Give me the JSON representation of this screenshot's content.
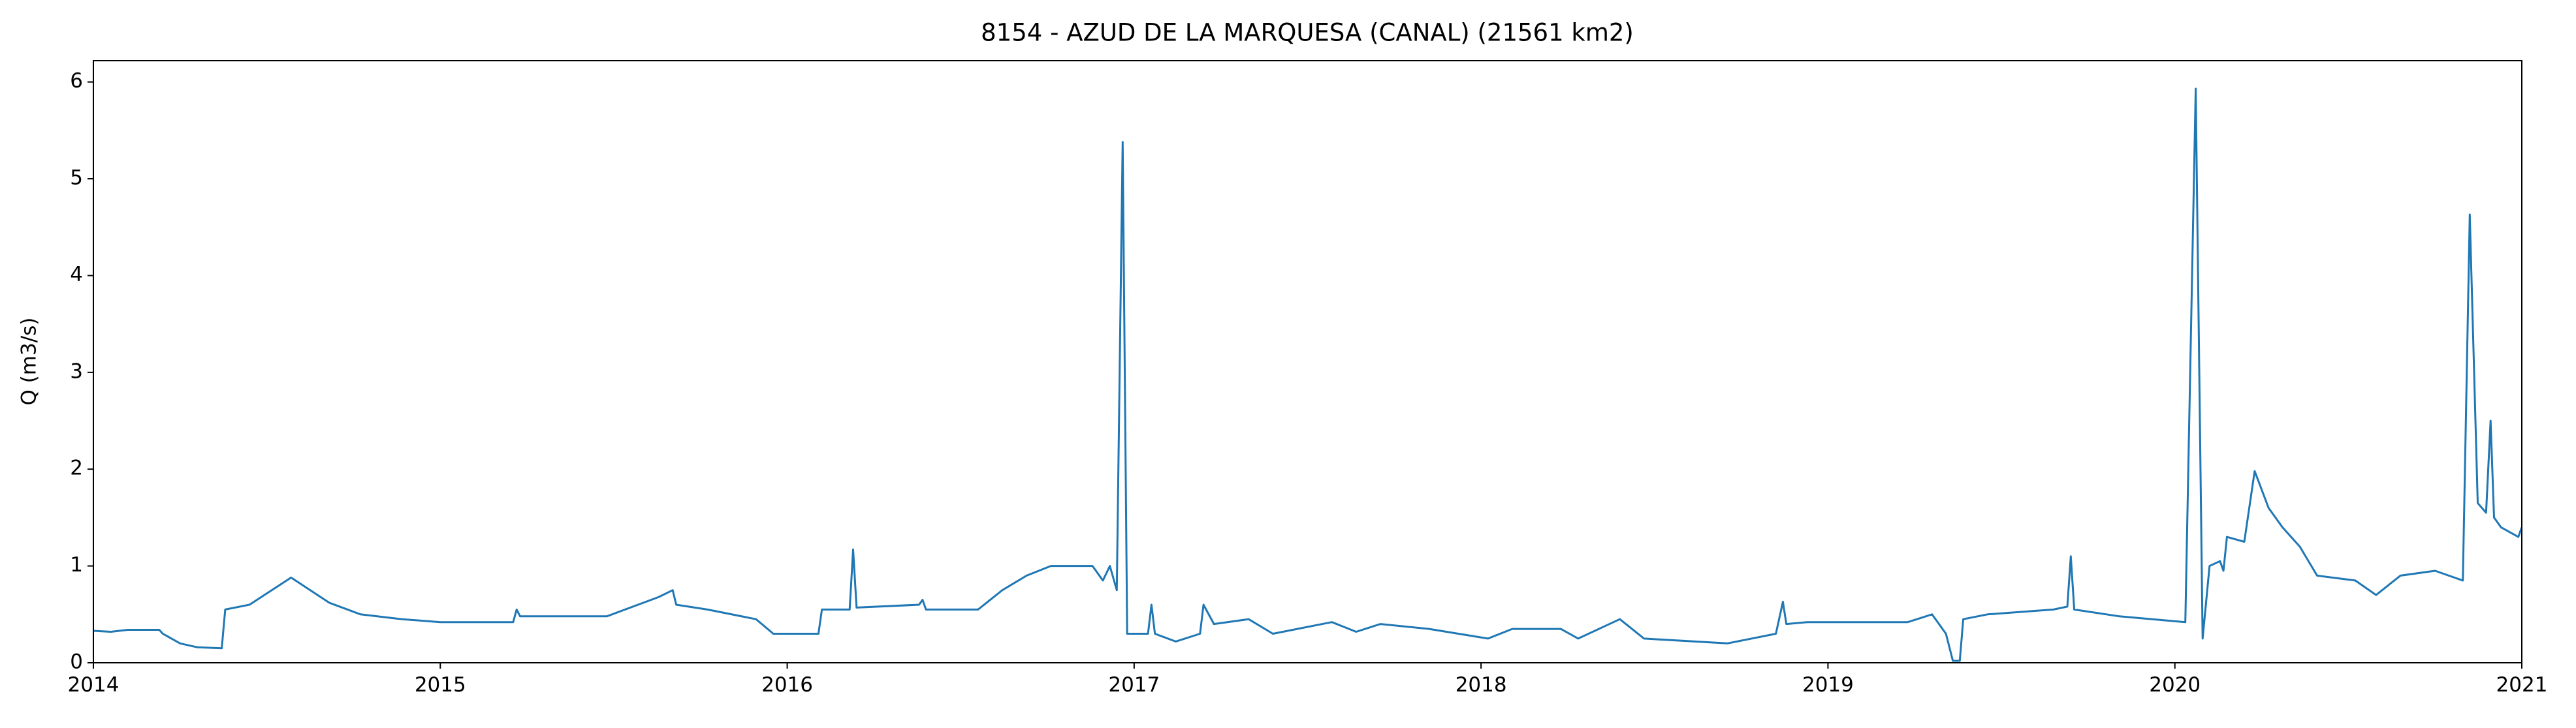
{
  "chart_data": {
    "type": "line",
    "title": "8154 - AZUD DE LA MARQUESA (CANAL) (21561 km2)",
    "y_label": "Q (m3/s)",
    "color": "#1f77b4",
    "x": [
      2014.0,
      2014.05,
      2014.1,
      2014.19,
      2014.2,
      2014.25,
      2014.3,
      2014.37,
      2014.38,
      2014.45,
      2014.57,
      2014.68,
      2014.77,
      2014.89,
      2015.0,
      2015.21,
      2015.22,
      2015.23,
      2015.48,
      2015.63,
      2015.67,
      2015.68,
      2015.77,
      2015.91,
      2015.96,
      2016.09,
      2016.1,
      2016.18,
      2016.19,
      2016.2,
      2016.38,
      2016.39,
      2016.4,
      2016.55,
      2016.62,
      2016.69,
      2016.76,
      2016.88,
      2016.91,
      2016.93,
      2016.95,
      2016.967,
      2016.98,
      2017.04,
      2017.05,
      2017.06,
      2017.12,
      2017.19,
      2017.2,
      2017.23,
      2017.33,
      2017.4,
      2017.57,
      2017.64,
      2017.71,
      2017.85,
      2018.02,
      2018.09,
      2018.23,
      2018.28,
      2018.4,
      2018.47,
      2018.71,
      2018.85,
      2018.87,
      2018.88,
      2018.94,
      2019.04,
      2019.23,
      2019.3,
      2019.34,
      2019.36,
      2019.38,
      2019.39,
      2019.46,
      2019.65,
      2019.69,
      2019.7,
      2019.71,
      2019.84,
      2020.03,
      2020.06,
      2020.08,
      2020.1,
      2020.13,
      2020.14,
      2020.15,
      2020.2,
      2020.23,
      2020.27,
      2020.31,
      2020.36,
      2020.41,
      2020.52,
      2020.58,
      2020.65,
      2020.75,
      2020.83,
      2020.85,
      2020.873,
      2020.897,
      2020.91,
      2020.92,
      2020.94,
      2020.99,
      2021.0
    ],
    "values": [
      0.33,
      0.32,
      0.34,
      0.34,
      0.3,
      0.2,
      0.16,
      0.15,
      0.55,
      0.6,
      0.88,
      0.62,
      0.5,
      0.45,
      0.42,
      0.42,
      0.55,
      0.48,
      0.48,
      0.68,
      0.75,
      0.6,
      0.55,
      0.45,
      0.3,
      0.3,
      0.55,
      0.55,
      1.17,
      0.57,
      0.6,
      0.65,
      0.55,
      0.55,
      0.75,
      0.9,
      1.0,
      1.0,
      0.85,
      1.0,
      0.75,
      5.38,
      0.3,
      0.3,
      0.6,
      0.3,
      0.22,
      0.3,
      0.6,
      0.4,
      0.45,
      0.3,
      0.42,
      0.32,
      0.4,
      0.35,
      0.25,
      0.35,
      0.35,
      0.25,
      0.45,
      0.25,
      0.2,
      0.3,
      0.63,
      0.4,
      0.42,
      0.42,
      0.42,
      0.5,
      0.3,
      0.02,
      0.02,
      0.45,
      0.5,
      0.55,
      0.58,
      1.1,
      0.55,
      0.48,
      0.42,
      5.93,
      0.25,
      1.0,
      1.05,
      0.95,
      1.3,
      1.25,
      1.98,
      1.6,
      1.4,
      1.2,
      0.9,
      0.85,
      0.7,
      0.9,
      0.95,
      0.85,
      4.63,
      1.65,
      1.55,
      2.5,
      1.5,
      1.4,
      1.3,
      1.4
    ],
    "xlim": [
      2014,
      2021
    ],
    "xticks": [
      2014,
      2015,
      2016,
      2017,
      2018,
      2019,
      2020,
      2021
    ],
    "ylim": [
      0,
      6.22
    ],
    "yticks": [
      0,
      1,
      2,
      3,
      4,
      5,
      6
    ]
  }
}
